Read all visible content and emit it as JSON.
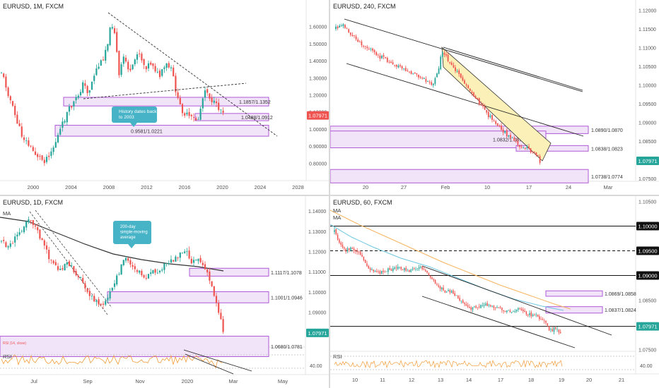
{
  "colors": {
    "up": "#26a69a",
    "down": "#ef5350",
    "zone_border": "#b05ad6",
    "zone_fill": "#f1e3f8",
    "channel": "#222222",
    "price_tag": "#26a69a",
    "price_tag_red": "#ef5350",
    "callout": "#46b3c6",
    "ma_1d": "#333333",
    "ma1_60": "#6ec7e0",
    "ma2_60": "#f5b560",
    "rsi_line": "#f29c38",
    "yellow_fill": "#fbf0b8"
  },
  "panels": {
    "tl": {
      "title": "EURUSD, 1M, FXCM",
      "callout": "History dates back to 2003",
      "price_label": "1.07971"
    },
    "tr": {
      "title": "EURUSD, 240, FXCM",
      "price_label": "1.07971"
    },
    "bl": {
      "title": "EURUSD, 1D, FXCM",
      "ma_label": "MA",
      "callout": "200-day simple-moving average",
      "rsi_label": "RSI",
      "rsi_tick": "40.00",
      "rsi_header": "RSI (14, close)",
      "price_label": "1.07971"
    },
    "br": {
      "title": "EURUSD, 60, FXCM",
      "ma_labels": [
        "MA",
        "MA"
      ],
      "rsi_label": "RSI",
      "rsi_tick": "40.00",
      "price_label": "1.07971"
    }
  },
  "chart_data": [
    {
      "type": "candlestick",
      "title": "EURUSD, 1M, FXCM",
      "x_ticks": [
        "2000",
        "2004",
        "2008",
        "2012",
        "2016",
        "2020",
        "2024",
        "2028"
      ],
      "y_ticks": [
        "1.60000",
        "1.50000",
        "1.40000",
        "1.30000",
        "1.20000",
        "1.10000",
        "1.00000",
        "0.90000",
        "0.80000"
      ],
      "ylim": [
        0.76,
        1.64
      ],
      "zones": [
        {
          "label": "1.1857/1.1352",
          "low": 1.1352,
          "high": 1.1857
        },
        {
          "label": "1.0488/1.0912",
          "low": 1.0488,
          "high": 1.0912
        },
        {
          "label": "0.9581/1.0221",
          "low": 0.9581,
          "high": 1.0221
        }
      ],
      "last_price": 1.07971,
      "annotation": "History dates back to 2003"
    },
    {
      "type": "candlestick",
      "title": "EURUSD, 240, FXCM",
      "x_ticks": [
        "20",
        "27",
        "Feb",
        "10",
        "17",
        "24",
        "Mar"
      ],
      "y_ticks": [
        "1.12000",
        "1.11500",
        "1.11000",
        "1.10500",
        "1.10000",
        "1.09500",
        "1.09000",
        "1.08500",
        "1.08000",
        "1.07500"
      ],
      "ylim": [
        1.0748,
        1.1205
      ],
      "zones": [
        {
          "label": "1.0890/1.0870",
          "low": 1.087,
          "high": 1.089
        },
        {
          "label": "1.0832/1.0877",
          "low": 1.0832,
          "high": 1.0877
        },
        {
          "label": "1.0838/1.0823",
          "low": 1.0823,
          "high": 1.0838
        },
        {
          "label": "1.0738/1.0774",
          "low": 1.0738,
          "high": 1.0774
        }
      ],
      "last_price": 1.07971
    },
    {
      "type": "candlestick",
      "title": "EURUSD, 1D, FXCM",
      "x_ticks": [
        "Jul",
        "Sep",
        "Nov",
        "2020",
        "Mar",
        "May"
      ],
      "y_ticks": [
        "1.14000",
        "1.13000",
        "1.12000",
        "1.11000",
        "1.10000",
        "1.09000",
        "1.08000"
      ],
      "ylim": [
        1.0755,
        1.1425
      ],
      "series": [
        {
          "name": "MA"
        }
      ],
      "zones": [
        {
          "label": "1.1117/1.1078",
          "low": 1.1078,
          "high": 1.1117
        },
        {
          "label": "1.1001/1.0946",
          "low": 1.0946,
          "high": 1.1001
        },
        {
          "label": "1.0680/1.0781",
          "low": 1.068,
          "high": 1.0781
        }
      ],
      "annotation": "200-day simple-moving average",
      "last_price": 1.07971,
      "rsi_ticks": [
        "40.00"
      ]
    },
    {
      "type": "candlestick",
      "title": "EURUSD, 60, FXCM",
      "x_ticks": [
        "10",
        "11",
        "12",
        "13",
        "14",
        "17",
        "18",
        "19",
        "20",
        "21"
      ],
      "y_ticks": [
        "1.10500",
        "1.10000",
        "1.09500",
        "1.09000",
        "1.08500",
        "1.08000",
        "1.07500"
      ],
      "ylim": [
        1.0758,
        1.1055
      ],
      "series": [
        {
          "name": "MA"
        },
        {
          "name": "MA"
        }
      ],
      "levels": [
        {
          "label": "1.10000",
          "value": 1.1,
          "style": "solid"
        },
        {
          "label": "1.09500",
          "value": 1.095,
          "style": "dashed"
        },
        {
          "label": "1.09000",
          "value": 1.09,
          "style": "solid"
        },
        {
          "label": "1.07971",
          "value": 1.07971,
          "style": "solid"
        }
      ],
      "zones": [
        {
          "label": "1.0869/1.0858",
          "low": 1.0858,
          "high": 1.0869
        },
        {
          "label": "1.0837/1.0824",
          "low": 1.0824,
          "high": 1.0837
        }
      ],
      "last_price": 1.07971,
      "rsi_ticks": [
        "40.00"
      ]
    }
  ]
}
